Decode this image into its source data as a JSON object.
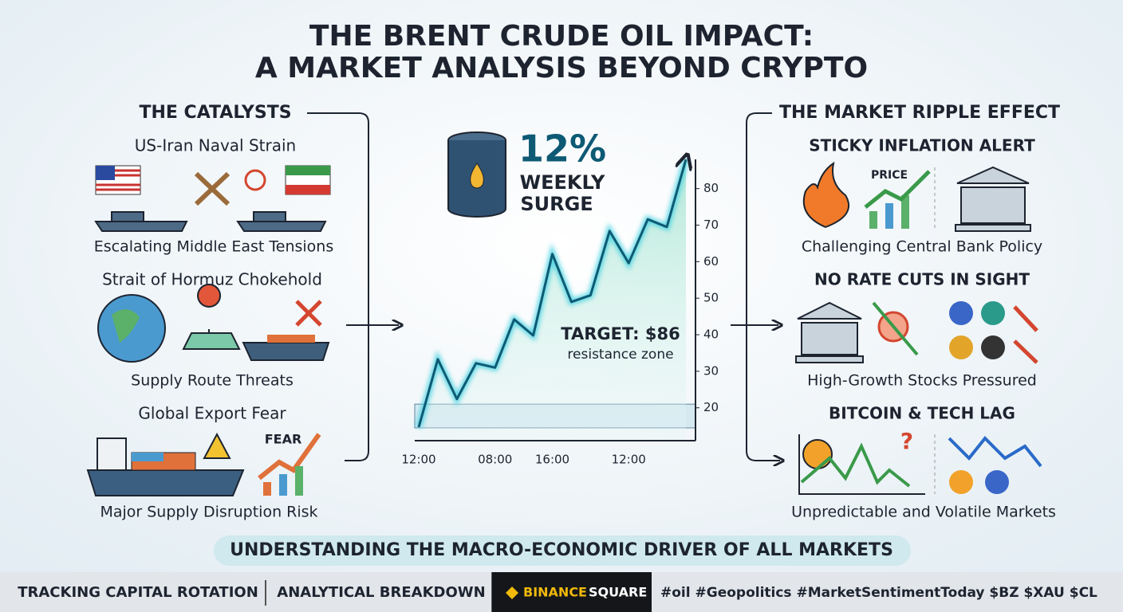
{
  "header": {
    "title_line1": "THE BRENT CRUDE OIL IMPACT:",
    "title_line2": "A MARKET ANALYSIS BEYOND CRYPTO"
  },
  "left": {
    "heading": "THE CATALYSTS",
    "sections": [
      {
        "title": "US-Iran Naval Strain",
        "caption": "Escalating Middle East Tensions"
      },
      {
        "title": "Strait of Hormuz Chokehold",
        "caption": "Supply Route Threats"
      },
      {
        "title": "Global Export Fear",
        "caption": "Major Supply Disruption Risk",
        "icon_label": "FEAR"
      }
    ]
  },
  "right": {
    "heading": "THE MARKET RIPPLE EFFECT",
    "sections": [
      {
        "title": "STICKY INFLATION ALERT",
        "caption": "Challenging Central Bank Policy",
        "icon_label": "PRICE"
      },
      {
        "title": "NO RATE CUTS IN SIGHT",
        "caption": "High-Growth Stocks Pressured"
      },
      {
        "title": "BITCOIN & TECH LAG",
        "caption": "Unpredictable and Volatile Markets"
      }
    ]
  },
  "chart_data": {
    "type": "line",
    "headline": "12%",
    "headline_sub_1": "WEEKLY",
    "headline_sub_2": "SURGE",
    "annotation_1": "TARGET: $86",
    "annotation_2": "resistance zone",
    "categories": [
      "12:00",
      null,
      null,
      null,
      "08:00",
      null,
      null,
      "16:00",
      null,
      null,
      null,
      "12:00",
      null,
      null,
      null
    ],
    "series": [
      {
        "color": "#0e5a74",
        "values": [
          14.7,
          33.3,
          22.4,
          32.2,
          31,
          44.2,
          39.8,
          62.1,
          49,
          50.8,
          68.4,
          59.6,
          71.6,
          69.5,
          88
        ]
      }
    ],
    "ylim": [
      11,
      88
    ],
    "yticks": [
      20,
      30,
      40,
      50,
      60,
      70,
      80
    ],
    "band": [
      14.5,
      21
    ],
    "grid": false
  },
  "banner": "UNDERSTANDING THE MACRO-ECONOMIC DRIVER OF ALL MARKETS",
  "footer": {
    "item_1": "TRACKING CAPITAL ROTATION",
    "item_2": "ANALYTICAL BREAKDOWN",
    "brand_1": "BINANCE",
    "brand_2": "SQUARE",
    "hashtags": "#oil #Geopolitics #MarketSentimentToday $BZ $XAU $CL"
  }
}
